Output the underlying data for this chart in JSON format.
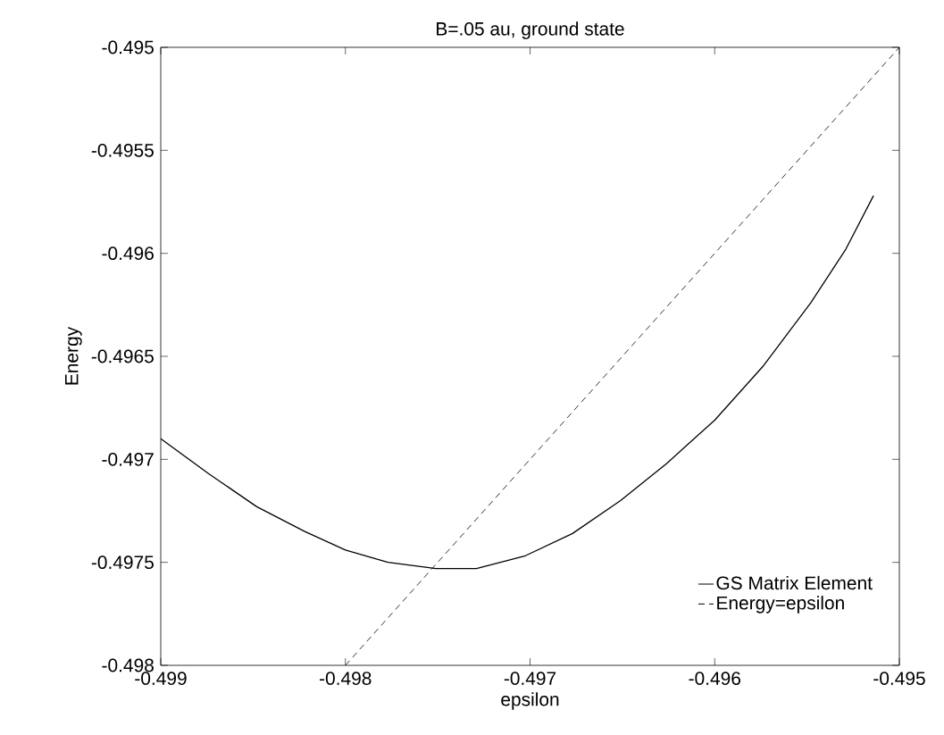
{
  "chart_data": {
    "type": "line",
    "title": "B=.05 au, ground state",
    "xlabel": "epsilon",
    "ylabel": "Energy",
    "xlim": [
      -0.499,
      -0.495
    ],
    "ylim": [
      -0.498,
      -0.495
    ],
    "xticks": [
      -0.499,
      -0.498,
      -0.497,
      -0.496,
      -0.495
    ],
    "yticks": [
      -0.498,
      -0.4975,
      -0.497,
      -0.4965,
      -0.496,
      -0.4955,
      -0.495
    ],
    "legend": "bottom right",
    "grid": false,
    "marker": "none",
    "series": [
      {
        "name": "GS Matrix Element",
        "color": "#000000",
        "line_style": "solid",
        "x": [
          -0.499,
          -0.49874,
          -0.49848,
          -0.49822,
          -0.498,
          -0.49777,
          -0.49751,
          -0.49729,
          -0.49703,
          -0.49677,
          -0.49651,
          -0.49626,
          -0.496,
          -0.49574,
          -0.49548,
          -0.49529,
          -0.49514
        ],
        "values": [
          -0.4969,
          -0.49707,
          -0.49723,
          -0.49735,
          -0.49744,
          -0.4975,
          -0.49753,
          -0.49753,
          -0.49747,
          -0.49736,
          -0.4972,
          -0.49702,
          -0.49681,
          -0.49655,
          -0.49624,
          -0.49598,
          -0.49572
        ]
      },
      {
        "name": "Energy=epsilon",
        "color": "#000000",
        "line_style": "dashed",
        "x": [
          -0.498,
          -0.495
        ],
        "values": [
          -0.498,
          -0.495
        ]
      }
    ]
  }
}
